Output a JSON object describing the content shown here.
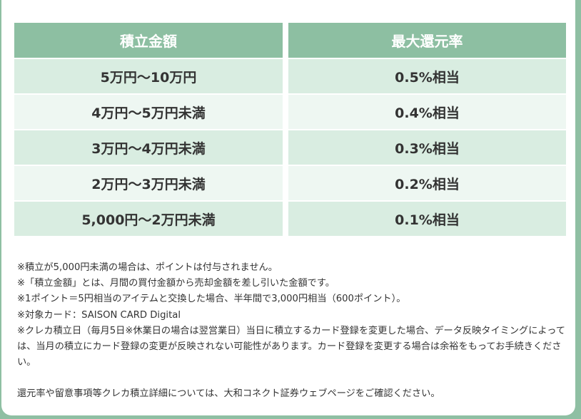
{
  "table": {
    "headers": [
      "積立金額",
      "最大還元率"
    ],
    "rows": [
      [
        "5万円〜10万円",
        "0.5%相当"
      ],
      [
        "4万円〜5万円未満",
        "0.4%相当"
      ],
      [
        "3万円〜4万円未満",
        "0.3%相当"
      ],
      [
        "2万円〜3万円未満",
        "0.2%相当"
      ],
      [
        "5,000円〜2万円未満",
        "0.1%相当"
      ]
    ]
  },
  "notes": [
    "※積立が5,000円未満の場合は、ポイントは付与されません。",
    "※「積立金額」とは、月間の買付金額から売却金額を差し引いた金額です。",
    "※1ポイント＝5円相当のアイテムと交換した場合、半年間で3,000円相当（600ポイント）。",
    "※対象カード：SAISON CARD Digital",
    "※クレカ積立日（毎月5日※休業日の場合は翌営業日）当日に積立するカード登録を変更した場合、データ反映タイミングによっては、当月の積立にカード登録の変更が反映されない可能性があります。カード登録を変更する場合は余裕をもってお手続きください。"
  ],
  "footer": "還元率や留意事項等クレカ積立詳細については、大和コネクト証券ウェブページをご確認ください。",
  "colors": {
    "header_bg": "#8dbfa2",
    "row_odd_bg": "#d9ede1",
    "row_even_bg": "#eef7f2",
    "page_bg": "#8fbfa3"
  }
}
